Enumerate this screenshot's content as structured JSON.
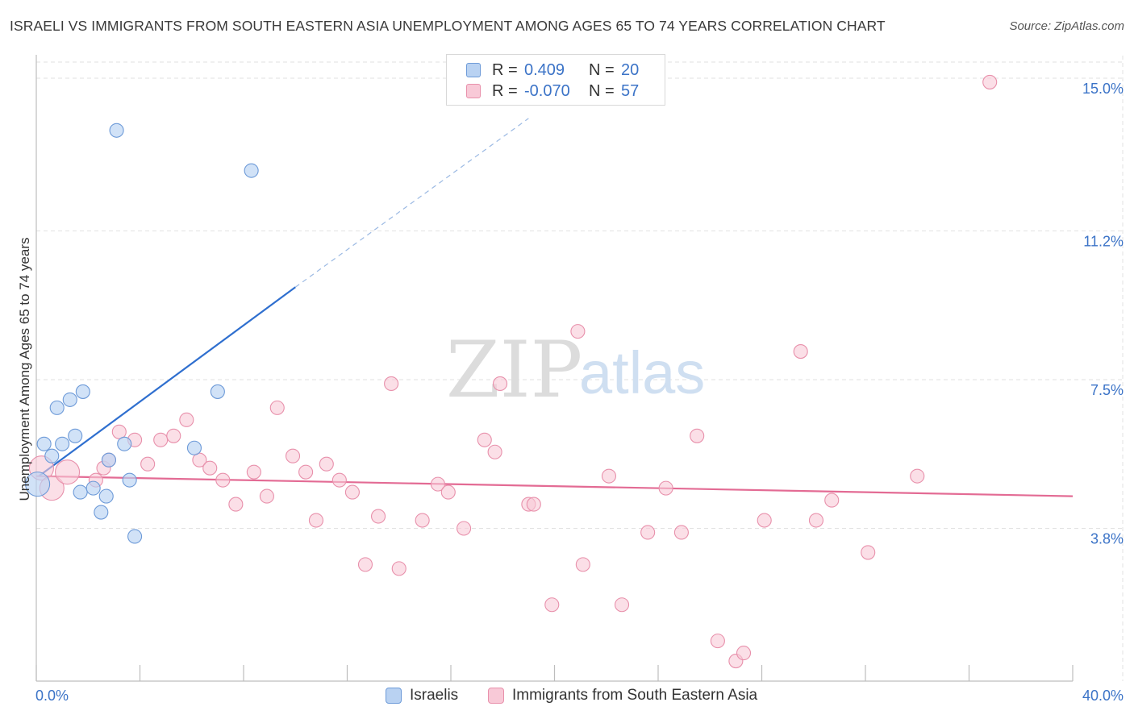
{
  "title": "ISRAELI VS IMMIGRANTS FROM SOUTH EASTERN ASIA UNEMPLOYMENT AMONG AGES 65 TO 74 YEARS CORRELATION CHART",
  "source": "Source: ZipAtlas.com",
  "watermark": {
    "zip": "ZIP",
    "atlas": "atlas"
  },
  "legend_top": {
    "israelis": {
      "r_label": "R =",
      "r_value": "0.409",
      "n_label": "N =",
      "n_value": "20"
    },
    "immigrants": {
      "r_label": "R =",
      "r_value": "-0.070",
      "n_label": "N =",
      "n_value": "57"
    }
  },
  "legend_bottom": {
    "israelis": "Israelis",
    "immigrants": "Immigrants from South Eastern Asia"
  },
  "colors": {
    "israelis_fill": "#b9d2f2",
    "israelis_stroke": "#6d9ad8",
    "israelis_line": "#2f6fcf",
    "immigrants_fill": "#f8c9d7",
    "immigrants_stroke": "#e890ab",
    "immigrants_line": "#e36b94",
    "axis_label": "#3b73c7",
    "grid": "#e2e2e2"
  },
  "chart_data": {
    "type": "scatter",
    "title": "ISRAELI VS IMMIGRANTS FROM SOUTH EASTERN ASIA UNEMPLOYMENT AMONG AGES 65 TO 74 YEARS CORRELATION CHART",
    "xlabel": "",
    "ylabel": "Unemployment Among Ages 65 to 74 years",
    "xlim": [
      0,
      40
    ],
    "ylim": [
      0,
      15.4
    ],
    "x_tick_labels": [
      "0.0%",
      "40.0%"
    ],
    "y_ticks": [
      3.8,
      7.5,
      11.2,
      15.0
    ],
    "y_tick_labels": [
      "3.8%",
      "7.5%",
      "11.2%",
      "15.0%"
    ],
    "grid": true,
    "series": [
      {
        "name": "Israelis",
        "points": [
          [
            0.05,
            4.9
          ],
          [
            0.3,
            5.9
          ],
          [
            0.6,
            5.6
          ],
          [
            0.8,
            6.8
          ],
          [
            1.0,
            5.9
          ],
          [
            1.3,
            7.0
          ],
          [
            1.5,
            6.1
          ],
          [
            1.8,
            7.2
          ],
          [
            1.7,
            4.7
          ],
          [
            2.2,
            4.8
          ],
          [
            2.5,
            4.2
          ],
          [
            2.7,
            4.6
          ],
          [
            2.8,
            5.5
          ],
          [
            3.1,
            13.7
          ],
          [
            3.4,
            5.9
          ],
          [
            3.6,
            5.0
          ],
          [
            3.8,
            3.6
          ],
          [
            6.1,
            5.8
          ],
          [
            7.0,
            7.2
          ],
          [
            8.3,
            12.7
          ]
        ],
        "trend": {
          "x_start": 0.1,
          "y_start": 5.1,
          "x_end": 10.0,
          "y_end": 9.8,
          "dashed_to_x": 19.0,
          "dashed_to_y": 14.0
        }
      },
      {
        "name": "Immigrants from South Eastern Asia",
        "points": [
          [
            0.2,
            5.3
          ],
          [
            0.6,
            4.8
          ],
          [
            1.2,
            5.2
          ],
          [
            2.3,
            5.0
          ],
          [
            2.6,
            5.3
          ],
          [
            2.8,
            5.5
          ],
          [
            3.2,
            6.2
          ],
          [
            3.8,
            6.0
          ],
          [
            4.3,
            5.4
          ],
          [
            4.8,
            6.0
          ],
          [
            5.3,
            6.1
          ],
          [
            5.8,
            6.5
          ],
          [
            6.3,
            5.5
          ],
          [
            6.7,
            5.3
          ],
          [
            7.2,
            5.0
          ],
          [
            7.7,
            4.4
          ],
          [
            8.4,
            5.2
          ],
          [
            8.9,
            4.6
          ],
          [
            9.3,
            6.8
          ],
          [
            9.9,
            5.6
          ],
          [
            10.4,
            5.2
          ],
          [
            10.8,
            4.0
          ],
          [
            11.2,
            5.4
          ],
          [
            11.7,
            5.0
          ],
          [
            12.2,
            4.7
          ],
          [
            12.7,
            2.9
          ],
          [
            13.2,
            4.1
          ],
          [
            13.7,
            7.4
          ],
          [
            14.0,
            2.8
          ],
          [
            14.9,
            4.0
          ],
          [
            15.5,
            4.9
          ],
          [
            15.9,
            4.7
          ],
          [
            16.5,
            3.8
          ],
          [
            17.3,
            6.0
          ],
          [
            17.7,
            5.7
          ],
          [
            17.9,
            7.4
          ],
          [
            19.0,
            4.4
          ],
          [
            19.2,
            4.4
          ],
          [
            19.9,
            1.9
          ],
          [
            20.9,
            8.7
          ],
          [
            21.1,
            2.9
          ],
          [
            22.1,
            5.1
          ],
          [
            22.6,
            1.9
          ],
          [
            23.6,
            3.7
          ],
          [
            24.3,
            4.8
          ],
          [
            24.9,
            3.7
          ],
          [
            25.5,
            6.1
          ],
          [
            26.3,
            1.0
          ],
          [
            27.0,
            0.5
          ],
          [
            27.3,
            0.7
          ],
          [
            28.1,
            4.0
          ],
          [
            29.5,
            8.2
          ],
          [
            30.1,
            4.0
          ],
          [
            30.7,
            4.5
          ],
          [
            32.1,
            3.2
          ],
          [
            34.0,
            5.1
          ],
          [
            36.8,
            14.9
          ]
        ],
        "trend": {
          "x_start": 0.0,
          "y_start": 5.1,
          "x_end": 40.0,
          "y_end": 4.6
        }
      }
    ]
  }
}
